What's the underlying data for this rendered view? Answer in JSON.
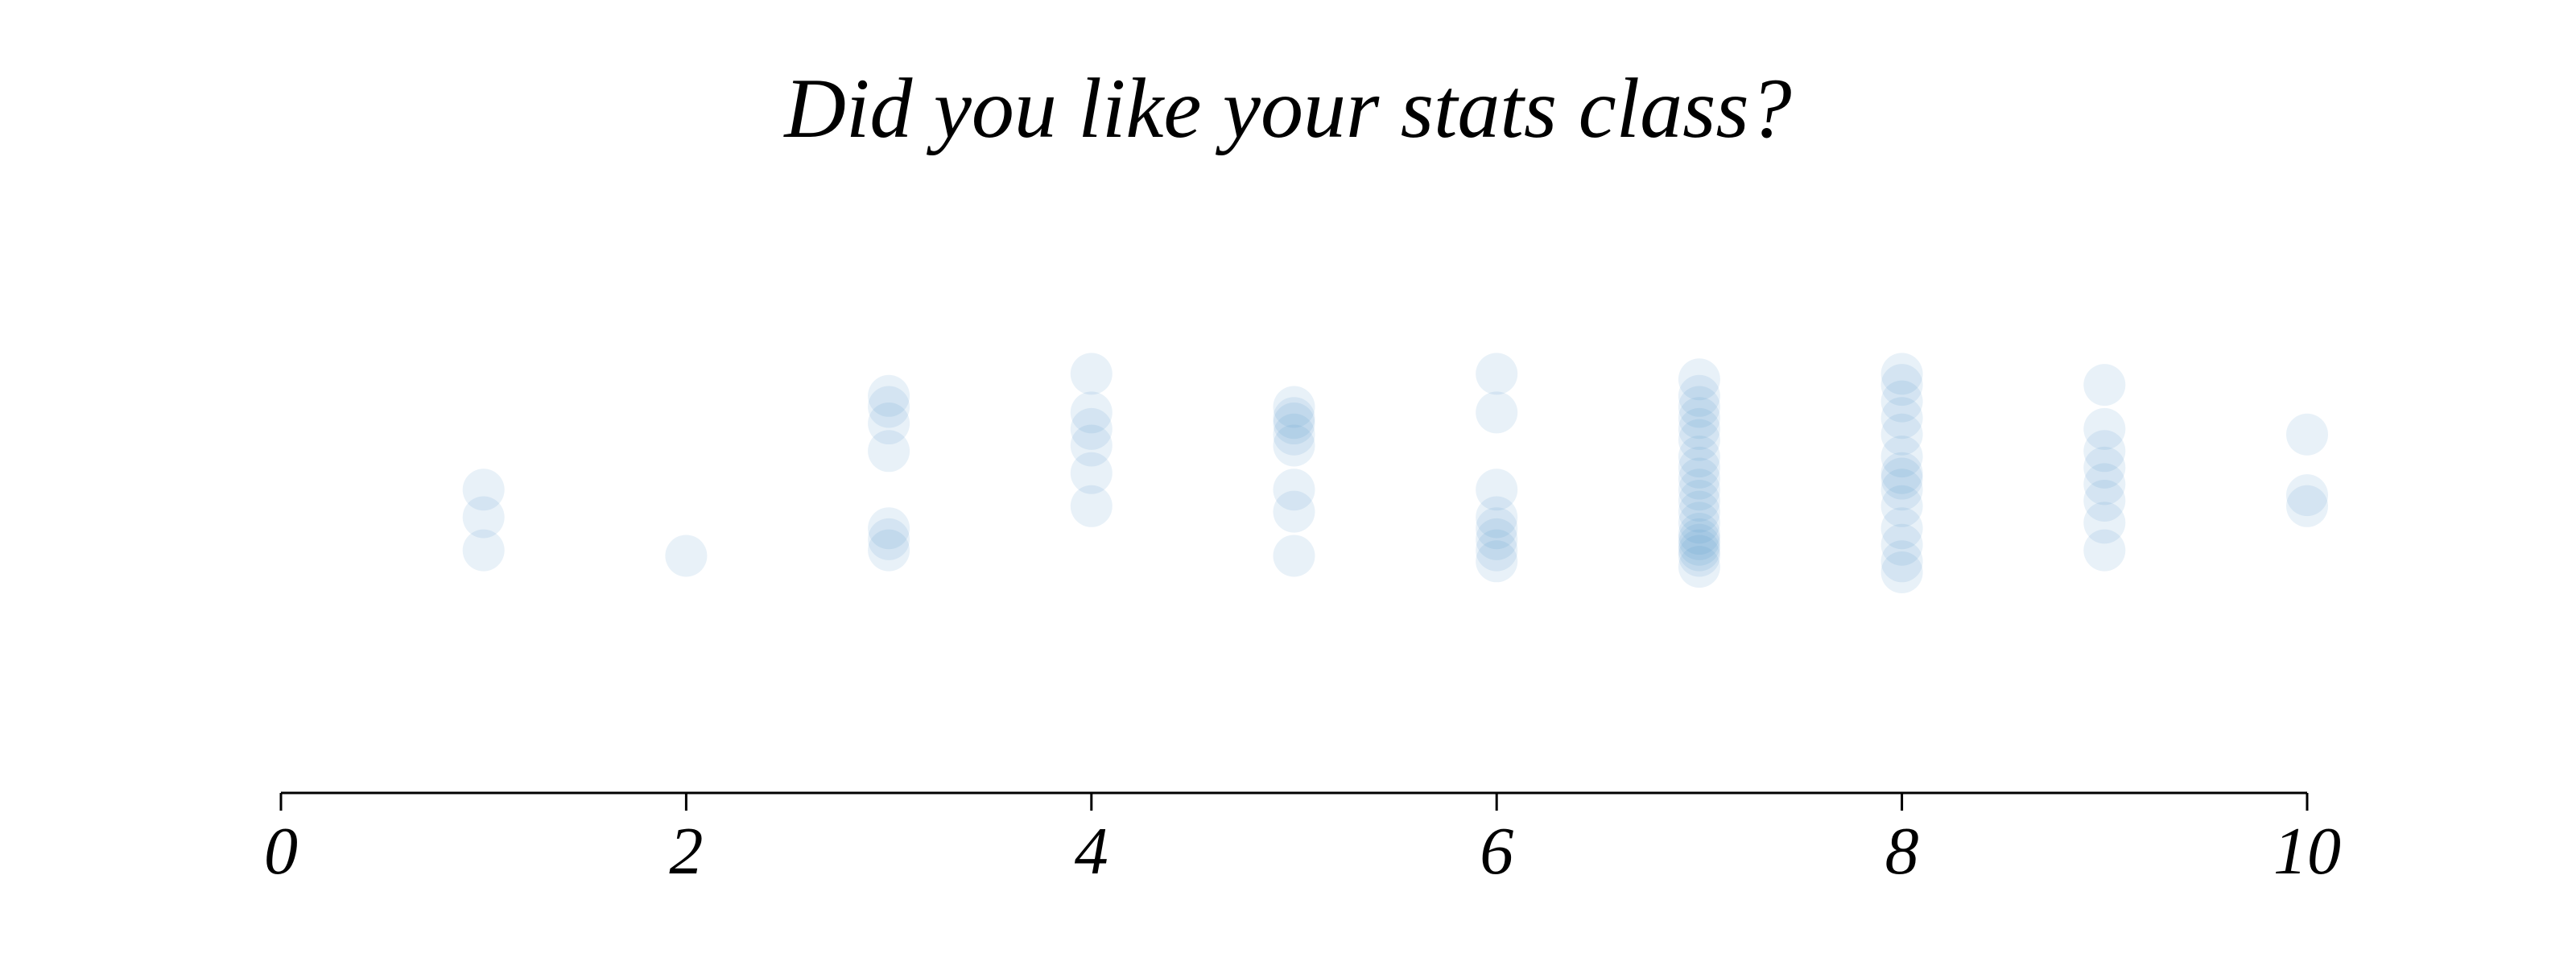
{
  "chart_data": {
    "type": "scatter",
    "title": "Did you like your stats class?",
    "xlabel": "",
    "ylabel": "",
    "xlim": [
      0,
      10
    ],
    "xticks": [
      "0",
      "2",
      "4",
      "6",
      "8",
      "10"
    ],
    "grid": false,
    "legend": "none",
    "y_axis_visible": false,
    "point_color": "#4a90c8",
    "point_opacity": 0.13,
    "series": [
      {
        "points": [
          {
            "x": 1,
            "y": 0.5
          },
          {
            "x": 1,
            "y": 0.55
          },
          {
            "x": 1,
            "y": 0.44
          },
          {
            "x": 2,
            "y": 0.43
          },
          {
            "x": 3,
            "y": 0.72
          },
          {
            "x": 3,
            "y": 0.7
          },
          {
            "x": 3,
            "y": 0.67
          },
          {
            "x": 3,
            "y": 0.62
          },
          {
            "x": 3,
            "y": 0.48
          },
          {
            "x": 3,
            "y": 0.46
          },
          {
            "x": 3,
            "y": 0.44
          },
          {
            "x": 4,
            "y": 0.76
          },
          {
            "x": 4,
            "y": 0.69
          },
          {
            "x": 4,
            "y": 0.66
          },
          {
            "x": 4,
            "y": 0.63
          },
          {
            "x": 4,
            "y": 0.58
          },
          {
            "x": 4,
            "y": 0.52
          },
          {
            "x": 5,
            "y": 0.7
          },
          {
            "x": 5,
            "y": 0.68
          },
          {
            "x": 5,
            "y": 0.67
          },
          {
            "x": 5,
            "y": 0.65
          },
          {
            "x": 5,
            "y": 0.63
          },
          {
            "x": 5,
            "y": 0.55
          },
          {
            "x": 5,
            "y": 0.51
          },
          {
            "x": 5,
            "y": 0.43
          },
          {
            "x": 6,
            "y": 0.76
          },
          {
            "x": 6,
            "y": 0.69
          },
          {
            "x": 6,
            "y": 0.55
          },
          {
            "x": 6,
            "y": 0.5
          },
          {
            "x": 6,
            "y": 0.48
          },
          {
            "x": 6,
            "y": 0.46
          },
          {
            "x": 6,
            "y": 0.44
          },
          {
            "x": 6,
            "y": 0.42
          },
          {
            "x": 7,
            "y": 0.75
          },
          {
            "x": 7,
            "y": 0.72
          },
          {
            "x": 7,
            "y": 0.7
          },
          {
            "x": 7,
            "y": 0.68
          },
          {
            "x": 7,
            "y": 0.66
          },
          {
            "x": 7,
            "y": 0.64
          },
          {
            "x": 7,
            "y": 0.61
          },
          {
            "x": 7,
            "y": 0.59
          },
          {
            "x": 7,
            "y": 0.57
          },
          {
            "x": 7,
            "y": 0.55
          },
          {
            "x": 7,
            "y": 0.53
          },
          {
            "x": 7,
            "y": 0.51
          },
          {
            "x": 7,
            "y": 0.49
          },
          {
            "x": 7,
            "y": 0.47
          },
          {
            "x": 7,
            "y": 0.46
          },
          {
            "x": 7,
            "y": 0.45
          },
          {
            "x": 7,
            "y": 0.44
          },
          {
            "x": 7,
            "y": 0.43
          },
          {
            "x": 7,
            "y": 0.41
          },
          {
            "x": 8,
            "y": 0.76
          },
          {
            "x": 8,
            "y": 0.74
          },
          {
            "x": 8,
            "y": 0.71
          },
          {
            "x": 8,
            "y": 0.68
          },
          {
            "x": 8,
            "y": 0.65
          },
          {
            "x": 8,
            "y": 0.61
          },
          {
            "x": 8,
            "y": 0.58
          },
          {
            "x": 8,
            "y": 0.57
          },
          {
            "x": 8,
            "y": 0.55
          },
          {
            "x": 8,
            "y": 0.52
          },
          {
            "x": 8,
            "y": 0.48
          },
          {
            "x": 8,
            "y": 0.45
          },
          {
            "x": 8,
            "y": 0.42
          },
          {
            "x": 8,
            "y": 0.4
          },
          {
            "x": 9,
            "y": 0.74
          },
          {
            "x": 9,
            "y": 0.66
          },
          {
            "x": 9,
            "y": 0.62
          },
          {
            "x": 9,
            "y": 0.59
          },
          {
            "x": 9,
            "y": 0.56
          },
          {
            "x": 9,
            "y": 0.53
          },
          {
            "x": 9,
            "y": 0.49
          },
          {
            "x": 9,
            "y": 0.44
          },
          {
            "x": 10,
            "y": 0.65
          },
          {
            "x": 10,
            "y": 0.54
          },
          {
            "x": 10,
            "y": 0.52
          }
        ]
      }
    ]
  }
}
